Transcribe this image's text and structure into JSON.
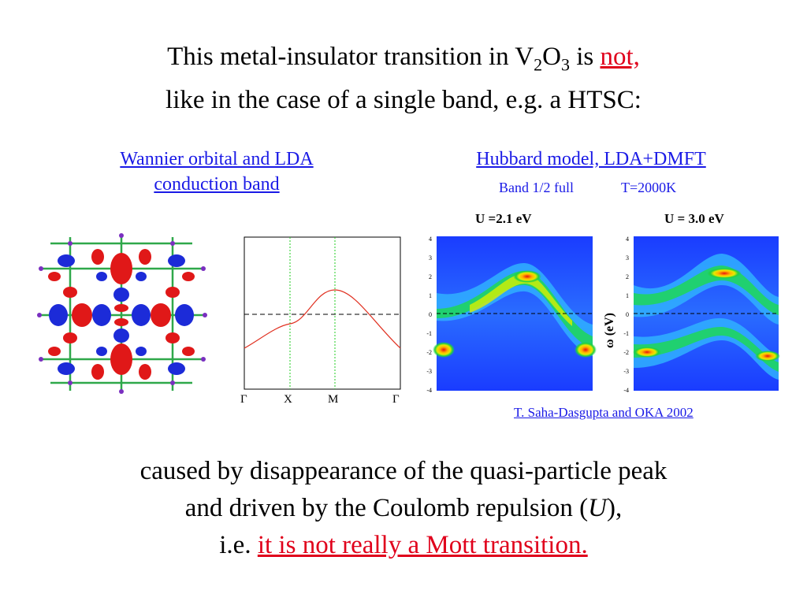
{
  "heading": {
    "line1_pre": "This metal-insulator transition in V",
    "sub1": "2",
    "mid_O": "O",
    "sub2": "3",
    "line1_is": " is ",
    "line1_red": "not,",
    "line2": "like in the case of a single band, e.g. a HTSC:"
  },
  "left_panel": {
    "caption_line1": "Wannier orbital and LDA",
    "caption_line2": "conduction band",
    "band_ticks": [
      "Γ",
      "X",
      "M",
      "Γ"
    ]
  },
  "right_panel": {
    "caption": "Hubbard model, LDA+DMFT",
    "sub1": "Band 1/2 full",
    "sub2": "T=2000K",
    "plot1_label": "U =2.1 eV",
    "plot2_label": "U = 3.0 eV",
    "yaxis_label": "ω (eV)",
    "yticks": [
      "4",
      "3",
      "2",
      "1",
      "0",
      "-1",
      "-2",
      "-3",
      "-4"
    ],
    "credit": "T. Saha-Dasgupta and OKA 2002"
  },
  "conclusion": {
    "line1": "caused by disappearance of the quasi-particle peak",
    "line2_pre": "and driven by the Coulomb repulsion (",
    "line2_U": "U",
    "line2_post": "),",
    "line3_pre": "i.e. ",
    "line3_red": "it is not really a Mott transition."
  },
  "colors": {
    "red": "#e0001b",
    "blue": "#1a1ae6"
  }
}
